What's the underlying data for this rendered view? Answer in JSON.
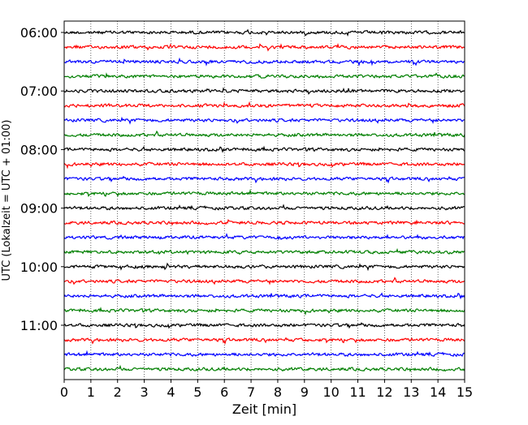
{
  "chart_data": {
    "type": "line",
    "title": "",
    "xlabel": "Zeit  [min]",
    "ylabel": "UTC (Lokalzeit = UTC + 01:00)",
    "xlim": [
      0,
      15
    ],
    "x_ticks": [
      0,
      1,
      2,
      3,
      4,
      5,
      6,
      7,
      8,
      9,
      10,
      11,
      12,
      13,
      14,
      15
    ],
    "grid": "vertical dotted",
    "y_ticks": [
      "06:00",
      "07:00",
      "08:00",
      "09:00",
      "10:00",
      "11:00"
    ],
    "trace_interval_min": 15,
    "trace_colors": [
      "#000000",
      "#ff0000",
      "#0000ff",
      "#007f00"
    ],
    "traces": [
      {
        "start": "06:00",
        "color": "#000000"
      },
      {
        "start": "06:15",
        "color": "#ff0000"
      },
      {
        "start": "06:30",
        "color": "#0000ff"
      },
      {
        "start": "06:45",
        "color": "#007f00"
      },
      {
        "start": "07:00",
        "color": "#000000"
      },
      {
        "start": "07:15",
        "color": "#ff0000"
      },
      {
        "start": "07:30",
        "color": "#0000ff"
      },
      {
        "start": "07:45",
        "color": "#007f00"
      },
      {
        "start": "08:00",
        "color": "#000000"
      },
      {
        "start": "08:15",
        "color": "#ff0000"
      },
      {
        "start": "08:30",
        "color": "#0000ff"
      },
      {
        "start": "08:45",
        "color": "#007f00"
      },
      {
        "start": "09:00",
        "color": "#000000"
      },
      {
        "start": "09:15",
        "color": "#ff0000"
      },
      {
        "start": "09:30",
        "color": "#0000ff"
      },
      {
        "start": "09:45",
        "color": "#007f00"
      },
      {
        "start": "10:00",
        "color": "#000000"
      },
      {
        "start": "10:15",
        "color": "#ff0000"
      },
      {
        "start": "10:30",
        "color": "#0000ff"
      },
      {
        "start": "10:45",
        "color": "#007f00"
      },
      {
        "start": "11:00",
        "color": "#000000"
      },
      {
        "start": "11:15",
        "color": "#ff0000"
      },
      {
        "start": "11:30",
        "color": "#0000ff"
      },
      {
        "start": "11:45",
        "color": "#007f00"
      }
    ]
  }
}
